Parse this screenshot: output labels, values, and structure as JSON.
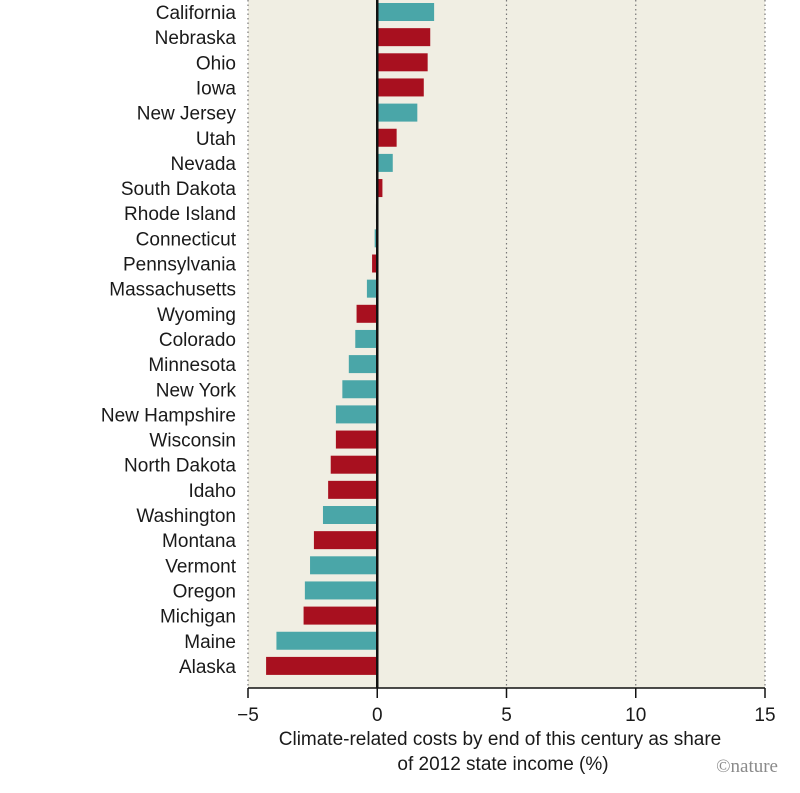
{
  "chart_data": {
    "type": "bar",
    "orientation": "horizontal",
    "categories": [
      "California",
      "Nebraska",
      "Ohio",
      "Iowa",
      "New Jersey",
      "Utah",
      "Nevada",
      "South Dakota",
      "Rhode Island",
      "Connecticut",
      "Pennsylvania",
      "Massachusetts",
      "Wyoming",
      "Colorado",
      "Minnesota",
      "New York",
      "New Hampshire",
      "Wisconsin",
      "North Dakota",
      "Idaho",
      "Washington",
      "Montana",
      "Vermont",
      "Oregon",
      "Michigan",
      "Maine",
      "Alaska"
    ],
    "values": [
      2.2,
      2.05,
      1.95,
      1.8,
      1.55,
      0.75,
      0.6,
      0.2,
      -0.05,
      -0.1,
      -0.2,
      -0.4,
      -0.8,
      -0.85,
      -1.1,
      -1.35,
      -1.6,
      -1.6,
      -1.8,
      -1.9,
      -2.1,
      -2.45,
      -2.6,
      -2.8,
      -2.85,
      -3.9,
      -4.3
    ],
    "groups": [
      "teal",
      "red",
      "red",
      "red",
      "teal",
      "red",
      "teal",
      "red",
      "teal",
      "teal",
      "red",
      "teal",
      "red",
      "teal",
      "teal",
      "teal",
      "teal",
      "red",
      "red",
      "red",
      "teal",
      "red",
      "teal",
      "teal",
      "red",
      "teal",
      "red"
    ],
    "xlim": [
      -5,
      15
    ],
    "xticks": [
      "−5",
      "0",
      "5",
      "10",
      "15"
    ],
    "xlabel_line1": "Climate-related costs by end of this century as share",
    "xlabel_line2": "of 2012 state income (%)",
    "grid": "vertical dotted at 5, 10, 15",
    "colors": {
      "teal": "#4aa6a8",
      "red": "#a8101f",
      "panel": "#f0eee3",
      "zero_line": "#111111"
    }
  },
  "credit": "©nature"
}
